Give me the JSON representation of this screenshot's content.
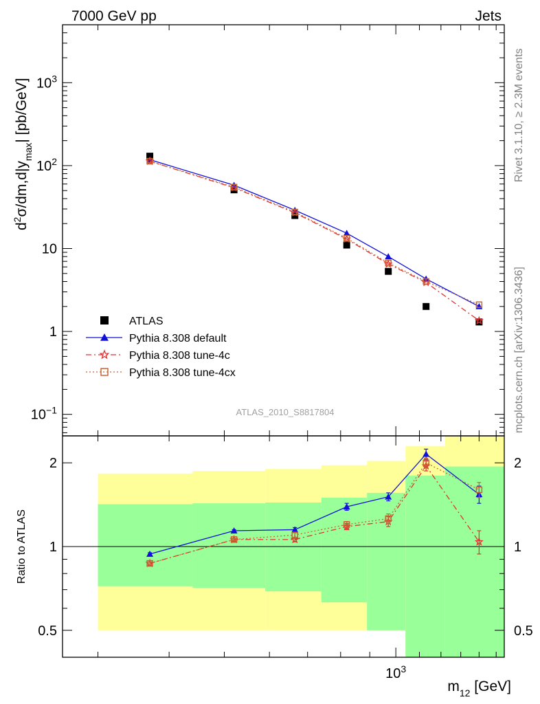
{
  "header": {
    "left": "7000 GeV pp",
    "right": "Jets"
  },
  "side_text": {
    "rivet": "Rivet 3.1.10, ≥ 2.3M events",
    "mcplots": "mcplots.cern.ch [arXiv:1306.3436]"
  },
  "analysis_label": "ATLAS_2010_S8817804",
  "axes": {
    "main_ylabel": "d²σ/dm,d|y_max| [pb/GeV]",
    "ratio_ylabel": "Ratio to ATLAS",
    "xlabel": "m12 [GeV]"
  },
  "chart_data": [
    {
      "type": "scatter",
      "panel": "main",
      "x_scale": "log",
      "y_scale": "log",
      "xlim": [
        260,
        1550
      ],
      "ylim": [
        0.055,
        5000
      ],
      "x_ticks": [
        {
          "value": 1000,
          "label": "10³"
        }
      ],
      "y_ticks": [
        {
          "value": 0.1,
          "label": "10⁻¹"
        },
        {
          "value": 1,
          "label": "1"
        },
        {
          "value": 10,
          "label": "10"
        },
        {
          "value": 100,
          "label": "10²"
        },
        {
          "value": 1000,
          "label": "10³"
        }
      ],
      "x": [
        370,
        520,
        665,
        820,
        970,
        1130,
        1400
      ],
      "series": [
        {
          "name": "ATLAS",
          "color": "#000000",
          "marker": "square",
          "line": "none",
          "values": [
            130,
            51,
            25,
            11,
            5.3,
            2.0,
            1.3
          ]
        },
        {
          "name": "Pythia 8.308 default",
          "color": "#1010d8",
          "marker": "triangle",
          "line": "solid",
          "values": [
            118,
            58,
            29,
            15.3,
            8.0,
            4.3,
            2.0
          ]
        },
        {
          "name": "Pythia 8.308 tune-4c",
          "color": "#e03030",
          "marker": "star",
          "line": "dashdot",
          "values": [
            113,
            54,
            27,
            13.0,
            6.5,
            3.9,
            1.35
          ]
        },
        {
          "name": "Pythia 8.308 tune-4cx",
          "color": "#c86432",
          "marker": "open-square",
          "line": "dotted",
          "values": [
            113,
            55,
            27.5,
            13.3,
            6.7,
            4.0,
            2.1
          ]
        }
      ],
      "legend_position": "bottom-left"
    },
    {
      "type": "line",
      "panel": "ratio",
      "x_scale": "log",
      "y_scale": "log",
      "xlim": [
        260,
        1550
      ],
      "ylim": [
        0.4,
        2.5
      ],
      "y_ticks": [
        {
          "value": 0.5,
          "label": "0.5"
        },
        {
          "value": 1,
          "label": "1"
        },
        {
          "value": 2,
          "label": "2"
        }
      ],
      "bins": [
        {
          "lo": 300,
          "hi": 440,
          "green": [
            0.72,
            1.42
          ],
          "yellow": [
            0.5,
            1.83
          ]
        },
        {
          "lo": 440,
          "hi": 590,
          "green": [
            0.71,
            1.43
          ],
          "yellow": [
            0.5,
            1.87
          ]
        },
        {
          "lo": 590,
          "hi": 740,
          "green": [
            0.69,
            1.44
          ],
          "yellow": [
            0.5,
            1.9
          ]
        },
        {
          "lo": 740,
          "hi": 890,
          "green": [
            0.63,
            1.5
          ],
          "yellow": [
            0.5,
            1.96
          ]
        },
        {
          "lo": 890,
          "hi": 1040,
          "green": [
            0.5,
            1.56
          ],
          "yellow": [
            0.5,
            2.03
          ]
        },
        {
          "lo": 1040,
          "hi": 1220,
          "green": [
            0.0,
            1.8
          ],
          "yellow": [
            0.0,
            2.3
          ]
        },
        {
          "lo": 1220,
          "hi": 1550,
          "green": [
            0.0,
            1.94
          ],
          "yellow": [
            0.0,
            2.5
          ]
        }
      ],
      "x": [
        370,
        520,
        665,
        820,
        970,
        1130,
        1400
      ],
      "series": [
        {
          "name": "Pythia 8.308 default",
          "color": "#1010d8",
          "marker": "triangle",
          "line": "solid",
          "values": [
            0.94,
            1.14,
            1.15,
            1.39,
            1.51,
            2.15,
            1.54
          ],
          "errors": [
            0.01,
            0.01,
            0.02,
            0.04,
            0.05,
            0.09,
            0.11
          ]
        },
        {
          "name": "Pythia 8.308 tune-4c",
          "color": "#e03030",
          "marker": "star",
          "line": "dashdot",
          "values": [
            0.87,
            1.06,
            1.06,
            1.18,
            1.23,
            1.95,
            1.04
          ],
          "errors": [
            0.01,
            0.01,
            0.02,
            0.03,
            0.05,
            0.08,
            0.1
          ]
        },
        {
          "name": "Pythia 8.308 tune-4cx",
          "color": "#c86432",
          "marker": "open-square",
          "line": "dotted",
          "values": [
            0.87,
            1.06,
            1.1,
            1.2,
            1.26,
            2.0,
            1.6
          ],
          "errors": [
            0.01,
            0.01,
            0.02,
            0.03,
            0.05,
            0.08,
            0.1
          ]
        }
      ]
    }
  ]
}
